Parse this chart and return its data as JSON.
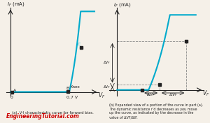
{
  "bg_color": "#f5f0e8",
  "curve_color": "#00aacc",
  "point_color": "#222222",
  "text_color": "#222222",
  "dashed_color": "#888888",
  "left_title": "(a)  V-I characteristic curve for forward bias.",
  "right_caption_lines": [
    "(b) Expanded view of a portion of the curve in part (a).",
    "The dynamic resistance r’d decreases as you move",
    "up the curve, as indicated by the decrease in the",
    "value of ΔVF/ΔIF."
  ],
  "watermark": "EngineeringTutorial.com",
  "watermark_color": "#cc0000"
}
